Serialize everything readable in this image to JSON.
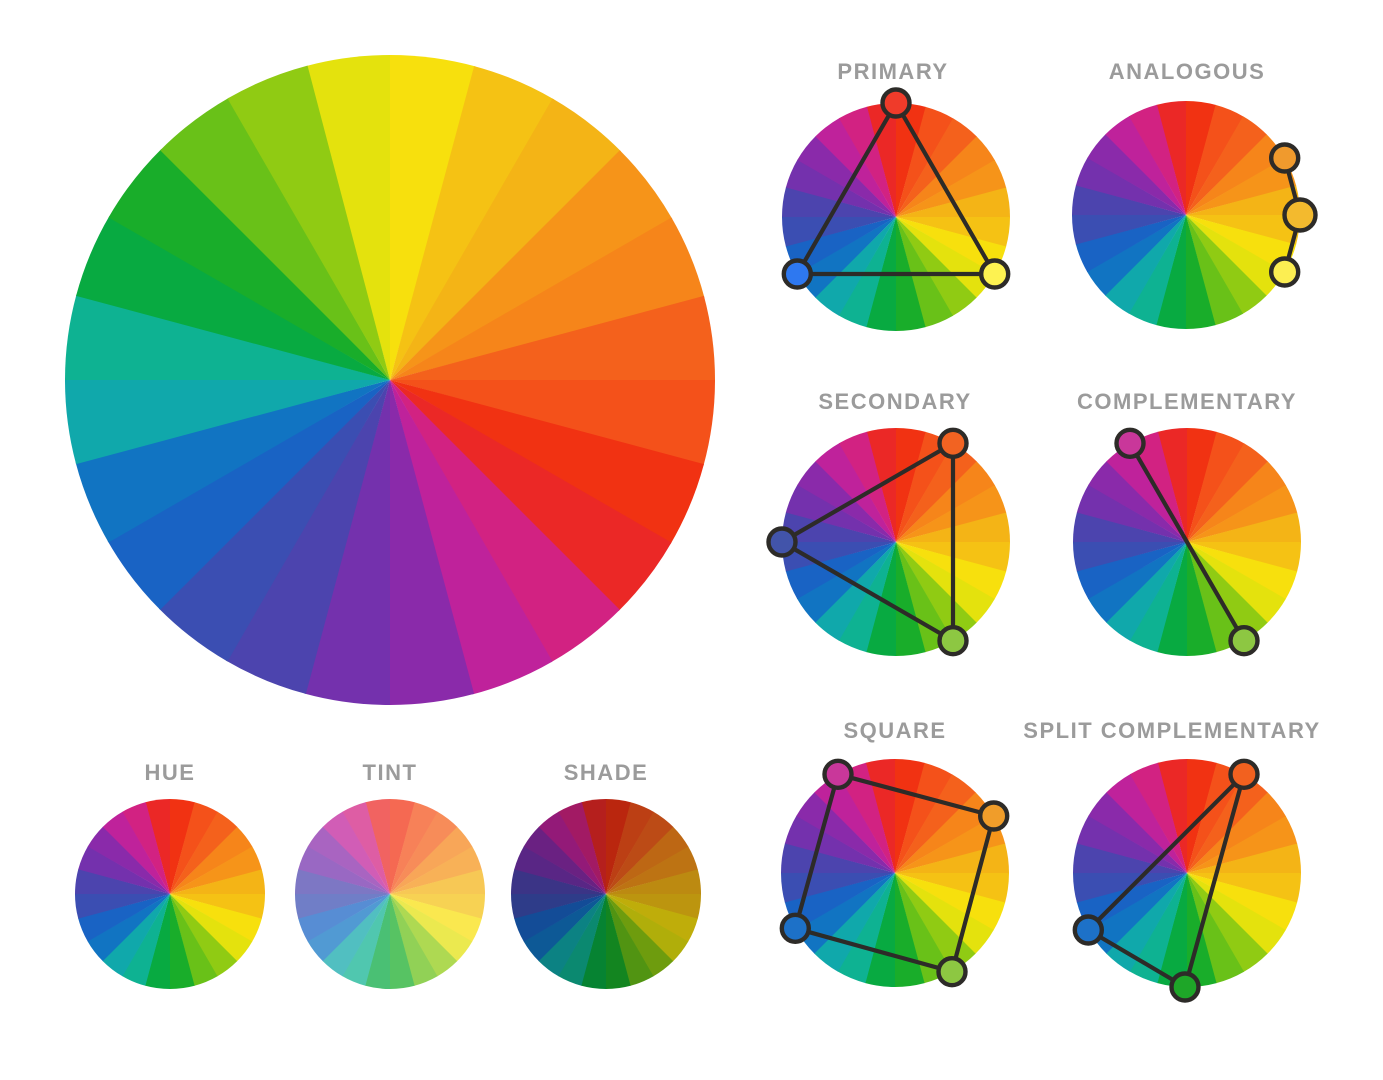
{
  "background": "#ffffff",
  "label_color": "#9b9b9b",
  "line_color": "#2d2b28",
  "wheel": {
    "hue_order_clockwise_from_top": [
      "red",
      "red-orange",
      "orange",
      "yellow-orange",
      "yellow",
      "yellow-green",
      "green",
      "teal",
      "blue",
      "blue-violet",
      "violet",
      "magenta"
    ],
    "hue_hex": {
      "red": "#f12a10",
      "red-orange": "#f4591c",
      "orange": "#f68d1a",
      "yellow-orange": "#f4bb15",
      "yellow": "#f8e70c",
      "yellow-green": "#7cc614",
      "green": "#06a82e",
      "teal": "#10b4a5",
      "blue": "#1168c8",
      "blue-violet": "#4349ae",
      "violet": "#7d2cad",
      "magenta": "#cc2098"
    },
    "big_wheel_top_hue": "yellow",
    "big_wheel_hue_direction": "reversed"
  },
  "schemes": [
    {
      "label": "PRIMARY",
      "closed": true,
      "marks": [
        {
          "hue": "red",
          "angle": 0,
          "color": "#ef3b2a"
        },
        {
          "hue": "yellow",
          "angle": 120,
          "color": "#fdf251"
        },
        {
          "hue": "blue",
          "angle": 240,
          "color": "#2e78f0"
        }
      ]
    },
    {
      "label": "ANALOGOUS",
      "closed": false,
      "marks": [
        {
          "hue": "orange",
          "angle": 60,
          "color": "#f09a2d"
        },
        {
          "hue": "yellow-orange",
          "angle": 90,
          "color": "#f3ba2e",
          "emphasis": true
        },
        {
          "hue": "yellow",
          "angle": 120,
          "color": "#fcee52"
        }
      ]
    },
    {
      "label": "SECONDARY",
      "closed": true,
      "marks": [
        {
          "hue": "red-orange",
          "angle": 30,
          "color": "#f26322"
        },
        {
          "hue": "yellow-green",
          "angle": 150,
          "color": "#8dc742"
        },
        {
          "hue": "blue-violet",
          "angle": 270,
          "color": "#4254aa"
        }
      ]
    },
    {
      "label": "COMPLEMENTARY",
      "closed": false,
      "marks": [
        {
          "hue": "magenta",
          "angle": 330,
          "color": "#c9379a"
        },
        {
          "hue": "yellow-green",
          "angle": 150,
          "color": "#8dc742"
        }
      ]
    },
    {
      "label": "SQUARE",
      "closed": true,
      "marks": [
        {
          "hue": "magenta",
          "angle": 330,
          "color": "#c9379a"
        },
        {
          "hue": "orange",
          "angle": 60,
          "color": "#f09d2a"
        },
        {
          "hue": "yellow-green",
          "angle": 150,
          "color": "#8dc742"
        },
        {
          "hue": "blue",
          "angle": 241,
          "color": "#1d71c8"
        }
      ]
    },
    {
      "label": "SPLIT COMPLEMENTARY",
      "closed": true,
      "marks": [
        {
          "hue": "red-orange",
          "angle": 30,
          "color": "#f2611f"
        },
        {
          "hue": "green",
          "angle": 181,
          "color": "#1ea628"
        },
        {
          "hue": "blue",
          "angle": 240,
          "color": "#1d71c8"
        }
      ]
    }
  ],
  "variants": [
    {
      "label": "HUE",
      "mix_with": "none",
      "mix_amount": 0
    },
    {
      "label": "TINT",
      "mix_with": "#ffffff",
      "mix_amount": 0.27
    },
    {
      "label": "SHADE",
      "mix_with": "#000000",
      "mix_amount": 0.23
    }
  ]
}
